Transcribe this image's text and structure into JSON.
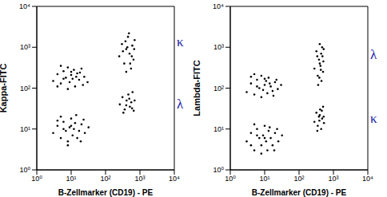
{
  "chart_data": [
    {
      "type": "scatter",
      "x_label": "B-Zellmarker (CD19) - PE",
      "y_label": "Kappa-FITC",
      "log": true,
      "color": "#000000",
      "xlim": [
        1,
        10000
      ],
      "ylim": [
        1,
        10000
      ],
      "xticks": [
        {
          "value": 1,
          "label": "10⁰"
        },
        {
          "value": 10,
          "label": "10¹"
        },
        {
          "value": 100,
          "label": "10²"
        },
        {
          "value": 1000,
          "label": "10³"
        },
        {
          "value": 10000,
          "label": "10⁴"
        }
      ],
      "yticks": [
        {
          "value": 1,
          "label": "10⁰"
        },
        {
          "value": 10,
          "label": "10¹"
        },
        {
          "value": 100,
          "label": "10²"
        },
        {
          "value": 1000,
          "label": "10³"
        },
        {
          "value": 10000,
          "label": "10⁴"
        }
      ],
      "annotations": [
        "κ",
        "λ"
      ],
      "x": [
        3,
        4,
        5,
        6,
        7,
        8,
        9,
        10,
        11,
        12,
        13,
        15,
        17,
        20,
        24,
        30,
        5,
        8,
        14,
        10,
        6,
        18,
        4,
        22,
        3,
        4,
        5,
        6,
        7,
        8,
        9,
        10,
        11,
        12,
        13,
        15,
        17,
        20,
        25,
        32,
        5,
        8,
        14,
        10,
        6,
        19,
        4,
        23,
        250,
        300,
        350,
        400,
        450,
        500,
        550,
        600,
        650,
        700,
        400,
        320,
        480,
        580,
        380,
        680,
        520,
        430,
        260,
        310,
        360,
        410,
        460,
        510,
        560,
        610,
        660,
        400,
        330,
        490,
        590,
        700
      ],
      "values": [
        150,
        220,
        130,
        260,
        180,
        320,
        140,
        210,
        170,
        280,
        110,
        230,
        160,
        300,
        190,
        140,
        350,
        95,
        190,
        250,
        170,
        240,
        110,
        120,
        8,
        12,
        6,
        15,
        9,
        5,
        11,
        18,
        7,
        10,
        14,
        6,
        9,
        13,
        8,
        11,
        20,
        4,
        22,
        12,
        10,
        5,
        16,
        17,
        600,
        1200,
        400,
        900,
        1800,
        700,
        300,
        1100,
        500,
        1500,
        250,
        800,
        2200,
        600,
        1400,
        900,
        400,
        1000,
        40,
        60,
        30,
        50,
        70,
        35,
        45,
        80,
        28,
        38,
        25,
        55,
        32,
        50
      ]
    },
    {
      "type": "scatter",
      "x_label": "B-Zellmarker (CD19) - PE",
      "y_label": "Lambda-FITC",
      "log": true,
      "color": "#000000",
      "xlim": [
        1,
        10000
      ],
      "ylim": [
        1,
        10000
      ],
      "xticks": [
        {
          "value": 1,
          "label": "10⁰"
        },
        {
          "value": 10,
          "label": "10¹"
        },
        {
          "value": 100,
          "label": "10²"
        },
        {
          "value": 1000,
          "label": "10³"
        },
        {
          "value": 10000,
          "label": "10⁴"
        }
      ],
      "yticks": [
        {
          "value": 1,
          "label": "10⁰"
        },
        {
          "value": 10,
          "label": "10¹"
        },
        {
          "value": 100,
          "label": "10²"
        },
        {
          "value": 1000,
          "label": "10³"
        },
        {
          "value": 10000,
          "label": "10⁴"
        }
      ],
      "annotations": [
        "λ",
        "κ"
      ],
      "x": [
        3,
        4,
        5,
        6,
        7,
        8,
        9,
        10,
        11,
        12,
        13,
        15,
        17,
        20,
        24,
        30,
        5,
        8,
        14,
        10,
        6,
        18,
        4,
        22,
        3,
        4,
        5,
        6,
        7,
        8,
        9,
        10,
        11,
        12,
        13,
        15,
        17,
        20,
        25,
        32,
        5,
        8,
        14,
        10,
        6,
        19,
        4,
        23,
        280,
        320,
        350,
        380,
        400,
        420,
        450,
        480,
        500,
        520,
        360,
        440,
        400,
        470,
        390,
        510,
        430,
        340,
        280,
        320,
        350,
        380,
        410,
        440,
        470,
        500,
        530,
        400,
        340,
        460,
        390,
        520
      ],
      "values": [
        80,
        130,
        70,
        160,
        100,
        200,
        90,
        120,
        150,
        75,
        180,
        110,
        85,
        140,
        95,
        120,
        220,
        60,
        130,
        170,
        110,
        65,
        190,
        160,
        5,
        8,
        3,
        10,
        6,
        4,
        7,
        12,
        5,
        3,
        9,
        6,
        4,
        8,
        5,
        7,
        13,
        2.5,
        11,
        6,
        7,
        3,
        4,
        10,
        300,
        800,
        200,
        500,
        1200,
        350,
        150,
        600,
        250,
        900,
        120,
        700,
        400,
        1000,
        180,
        450,
        280,
        600,
        15,
        25,
        12,
        20,
        30,
        10,
        18,
        35,
        14,
        22,
        9,
        28,
        16,
        20
      ]
    }
  ]
}
